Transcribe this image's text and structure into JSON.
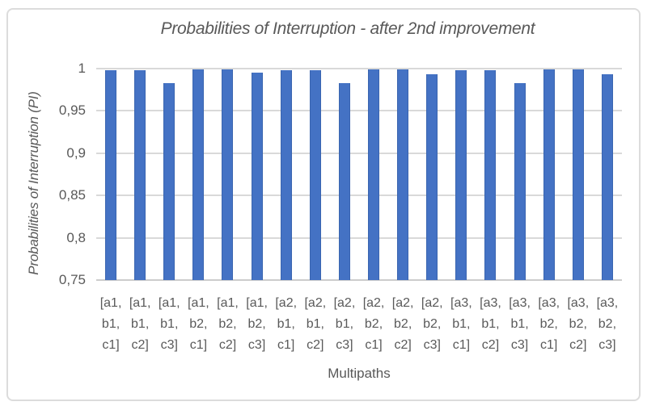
{
  "chart_data": {
    "type": "bar",
    "title": "Probabilities of Interruption - after 2nd improvement",
    "xlabel": "Multipaths",
    "ylabel": "Probabilities of Interruption (PI)",
    "categories": [
      "[a1, b1, c1]",
      "[a1, b1, c2]",
      "[a1, b1, c3]",
      "[a1, b2, c1]",
      "[a1, b2, c2]",
      "[a1, b2, c3]",
      "[a2, b1, c1]",
      "[a2, b1, c2]",
      "[a2, b1, c3]",
      "[a2, b2, c1]",
      "[a2, b2, c2]",
      "[a2, b2, c3]",
      "[a3, b1, c1]",
      "[a3, b1, c2]",
      "[a3, b1, c3]",
      "[a3, b2, c1]",
      "[a3, b2, c2]",
      "[a3, b2, c3]"
    ],
    "values": [
      0.998,
      0.998,
      0.983,
      0.999,
      0.999,
      0.995,
      0.998,
      0.998,
      0.983,
      0.999,
      0.999,
      0.993,
      0.998,
      0.998,
      0.983,
      0.999,
      0.999,
      0.993
    ],
    "ylim": [
      0.75,
      1.0
    ],
    "yticks": [
      {
        "value": 1.0,
        "label": "1"
      },
      {
        "value": 0.95,
        "label": "0,95"
      },
      {
        "value": 0.9,
        "label": "0,9"
      },
      {
        "value": 0.85,
        "label": "0,85"
      },
      {
        "value": 0.8,
        "label": "0,8"
      },
      {
        "value": 0.75,
        "label": "0,75"
      }
    ],
    "grid": true,
    "legend": "none",
    "colors": {
      "bar": "#4472c4",
      "grid": "#d9d9d9",
      "text": "#595959",
      "frame": "#dcdcdc",
      "background": "#ffffff"
    }
  }
}
